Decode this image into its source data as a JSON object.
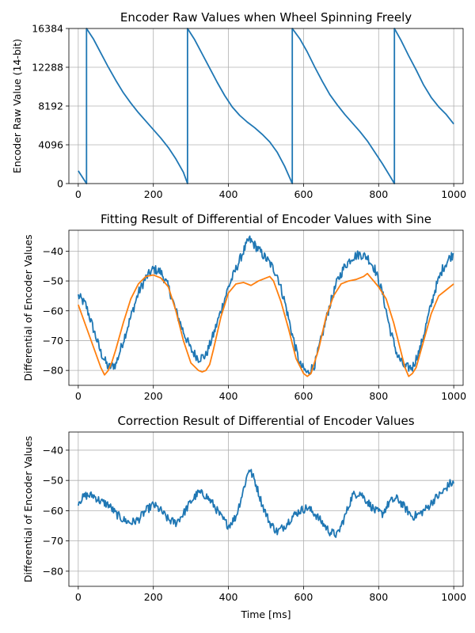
{
  "chart_data": [
    {
      "type": "line",
      "title": "Encoder Raw Values when Wheel Spinning Freely",
      "xlabel": "",
      "ylabel": "Encoder Raw Value (14-bit)",
      "xlim": [
        -25,
        1025
      ],
      "ylim": [
        0,
        16384
      ],
      "xticks": [
        0,
        200,
        400,
        600,
        800,
        1000
      ],
      "yticks": [
        0,
        4096,
        8192,
        12288,
        16384
      ],
      "grid": true,
      "series": [
        {
          "color": "#1f77b4",
          "x": [
            0,
            22,
            22,
            40,
            60,
            80,
            100,
            120,
            140,
            160,
            180,
            200,
            220,
            240,
            260,
            280,
            291,
            291,
            310,
            330,
            350,
            370,
            390,
            410,
            430,
            450,
            470,
            490,
            510,
            530,
            550,
            570,
            570,
            590,
            610,
            630,
            650,
            670,
            690,
            710,
            730,
            750,
            770,
            790,
            810,
            830,
            842,
            842,
            860,
            880,
            900,
            920,
            940,
            960,
            980,
            1000
          ],
          "y": [
            1350,
            0,
            16384,
            15300,
            13800,
            12300,
            10900,
            9600,
            8500,
            7500,
            6600,
            5700,
            4800,
            3800,
            2600,
            1200,
            0,
            16384,
            15200,
            13700,
            12200,
            10700,
            9300,
            8100,
            7200,
            6500,
            5900,
            5200,
            4400,
            3300,
            1800,
            0,
            16384,
            15300,
            13900,
            12300,
            10800,
            9400,
            8300,
            7300,
            6400,
            5500,
            4500,
            3300,
            2100,
            800,
            0,
            16384,
            15100,
            13500,
            12000,
            10400,
            9100,
            8100,
            7300,
            6300
          ]
        }
      ]
    },
    {
      "type": "line",
      "title": "Fitting Result of Differential of Encoder Values with Sine",
      "xlabel": "",
      "ylabel": "Differential of Encoder Values",
      "xlim": [
        -25,
        1025
      ],
      "ylim": [
        -85,
        -33
      ],
      "xticks": [
        0,
        200,
        400,
        600,
        800,
        1000
      ],
      "yticks": [
        -80,
        -70,
        -60,
        -50,
        -40
      ],
      "grid": true,
      "series": [
        {
          "color": "#1f77b4",
          "noise": 1.6,
          "x": [
            0,
            20,
            40,
            60,
            80,
            100,
            120,
            140,
            160,
            180,
            200,
            220,
            240,
            260,
            280,
            300,
            320,
            340,
            360,
            380,
            400,
            420,
            440,
            455,
            470,
            490,
            510,
            530,
            550,
            570,
            590,
            610,
            630,
            650,
            670,
            690,
            710,
            730,
            750,
            770,
            790,
            810,
            830,
            850,
            870,
            890,
            910,
            930,
            950,
            970,
            990,
            1000
          ],
          "y": [
            -55,
            -58,
            -66,
            -74,
            -79,
            -78,
            -70,
            -62,
            -54,
            -49,
            -46,
            -47,
            -52,
            -60,
            -67,
            -73,
            -76,
            -75,
            -68,
            -60,
            -52,
            -46,
            -40,
            -36,
            -38,
            -41,
            -44,
            -48,
            -57,
            -68,
            -78,
            -81,
            -78,
            -68,
            -58,
            -50,
            -45,
            -42,
            -41,
            -42,
            -46,
            -54,
            -66,
            -75,
            -79,
            -79,
            -73,
            -63,
            -53,
            -46,
            -42,
            -41
          ]
        },
        {
          "color": "#ff7f0e",
          "noise": 0,
          "x": [
            0,
            20,
            40,
            60,
            70,
            80,
            90,
            100,
            120,
            140,
            160,
            180,
            200,
            220,
            240,
            260,
            280,
            300,
            320,
            330,
            340,
            350,
            360,
            380,
            400,
            420,
            440,
            460,
            480,
            500,
            510,
            520,
            540,
            560,
            580,
            600,
            610,
            620,
            640,
            660,
            680,
            700,
            720,
            740,
            760,
            770,
            780,
            800,
            820,
            840,
            860,
            870,
            880,
            890,
            900,
            920,
            940,
            960,
            980,
            1000
          ],
          "y": [
            -58,
            -65,
            -72,
            -79,
            -81.5,
            -80,
            -77,
            -73,
            -64,
            -56,
            -51,
            -48.5,
            -48,
            -49,
            -52,
            -60,
            -70,
            -77.5,
            -80,
            -80.5,
            -80,
            -78,
            -73,
            -62,
            -54,
            -51,
            -50.5,
            -51.5,
            -50,
            -49,
            -48.5,
            -50,
            -57,
            -66,
            -76,
            -81,
            -82,
            -81,
            -73,
            -62,
            -55,
            -51,
            -50,
            -49.5,
            -48.5,
            -47.5,
            -49,
            -52,
            -56,
            -64,
            -74,
            -79,
            -82,
            -81,
            -79,
            -70,
            -61,
            -55,
            -53,
            -51
          ]
        }
      ]
    },
    {
      "type": "line",
      "title": "Correction Result of Differential of Encoder Values",
      "xlabel": "Time [ms]",
      "ylabel": "Differential of Encoder Values",
      "xlim": [
        -25,
        1025
      ],
      "ylim": [
        -85,
        -34
      ],
      "xticks": [
        0,
        200,
        400,
        600,
        800,
        1000
      ],
      "yticks": [
        -80,
        -70,
        -60,
        -50,
        -40
      ],
      "grid": true,
      "series": [
        {
          "color": "#1f77b4",
          "noise": 1.4,
          "x": [
            0,
            20,
            40,
            60,
            80,
            100,
            120,
            140,
            160,
            180,
            200,
            220,
            240,
            260,
            280,
            300,
            320,
            340,
            360,
            380,
            400,
            420,
            440,
            455,
            470,
            490,
            510,
            530,
            550,
            570,
            590,
            610,
            630,
            650,
            670,
            690,
            710,
            730,
            750,
            770,
            790,
            810,
            830,
            850,
            870,
            890,
            910,
            930,
            950,
            970,
            990,
            1000
          ],
          "y": [
            -57,
            -55,
            -55,
            -57,
            -58,
            -61,
            -63,
            -64,
            -63,
            -60,
            -58,
            -60,
            -63,
            -64,
            -61,
            -57,
            -54,
            -55,
            -58,
            -62,
            -65,
            -62,
            -53,
            -46,
            -50,
            -58,
            -64,
            -67,
            -65,
            -62,
            -60,
            -59,
            -61,
            -64,
            -67,
            -68,
            -62,
            -55,
            -54,
            -57,
            -60,
            -61,
            -57,
            -56,
            -59,
            -62,
            -61,
            -59,
            -56,
            -54,
            -51,
            -51
          ]
        }
      ]
    }
  ]
}
